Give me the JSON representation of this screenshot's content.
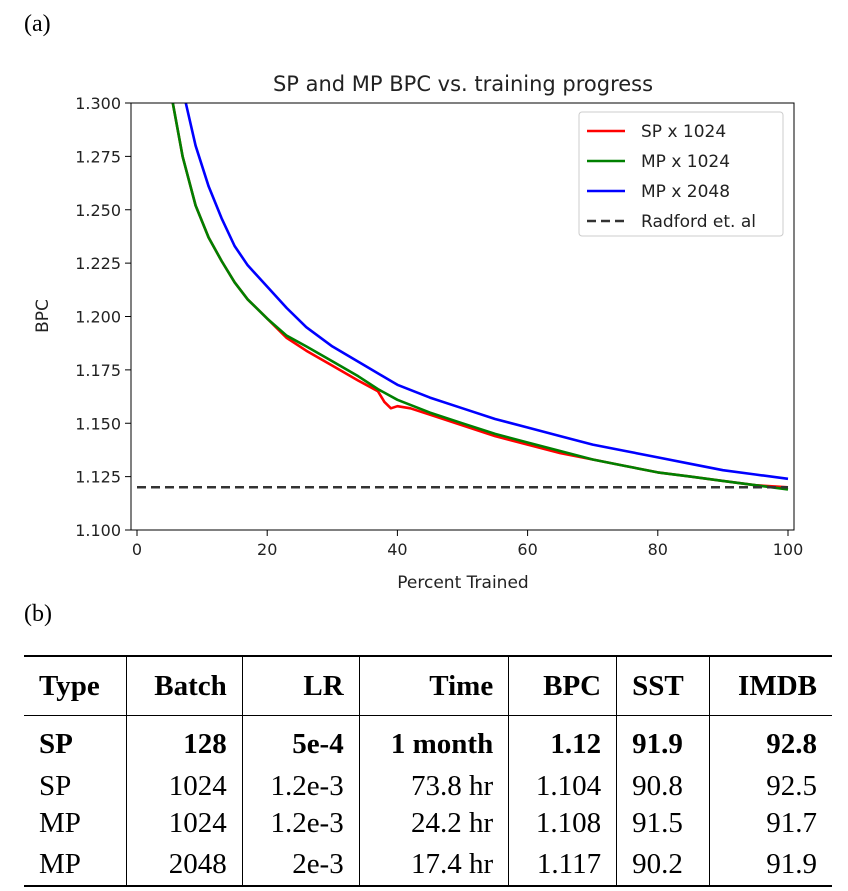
{
  "labels": {
    "panel_a": "(a)",
    "panel_b": "(b)"
  },
  "chart_data": {
    "type": "line",
    "title": "SP and MP BPC vs. training progress",
    "xlabel": "Percent Trained",
    "ylabel": "BPC",
    "xlim": [
      0,
      100
    ],
    "ylim": [
      1.1,
      1.3
    ],
    "xticks": [
      0,
      20,
      40,
      60,
      80,
      100
    ],
    "yticks": [
      1.1,
      1.125,
      1.15,
      1.175,
      1.2,
      1.225,
      1.25,
      1.275,
      1.3
    ],
    "xtick_labels": [
      "0",
      "20",
      "40",
      "60",
      "80",
      "100"
    ],
    "ytick_labels": [
      "1.100",
      "1.125",
      "1.150",
      "1.175",
      "1.200",
      "1.225",
      "1.250",
      "1.275",
      "1.300"
    ],
    "legend_position": "top-right",
    "series": [
      {
        "name": "SP x 1024",
        "color": "#ff0000",
        "x": [
          5.5,
          7,
          9,
          11,
          13,
          15,
          17,
          20,
          23,
          26,
          30,
          34,
          37,
          38,
          39,
          40,
          42,
          45,
          50,
          55,
          60,
          65,
          70,
          75,
          80,
          85,
          90,
          95,
          100
        ],
        "y": [
          1.3,
          1.275,
          1.252,
          1.237,
          1.226,
          1.216,
          1.208,
          1.199,
          1.19,
          1.184,
          1.177,
          1.17,
          1.165,
          1.16,
          1.157,
          1.158,
          1.157,
          1.154,
          1.149,
          1.144,
          1.14,
          1.136,
          1.133,
          1.13,
          1.127,
          1.125,
          1.123,
          1.121,
          1.12
        ]
      },
      {
        "name": "MP x 1024",
        "color": "#008000",
        "x": [
          5.5,
          7,
          9,
          11,
          13,
          15,
          17,
          20,
          23,
          26,
          30,
          34,
          37,
          40,
          45,
          50,
          55,
          60,
          65,
          70,
          75,
          80,
          85,
          90,
          95,
          100
        ],
        "y": [
          1.3,
          1.275,
          1.252,
          1.237,
          1.226,
          1.216,
          1.208,
          1.199,
          1.191,
          1.186,
          1.179,
          1.172,
          1.166,
          1.161,
          1.155,
          1.15,
          1.145,
          1.141,
          1.137,
          1.133,
          1.13,
          1.127,
          1.125,
          1.123,
          1.121,
          1.119
        ]
      },
      {
        "name": "MP x 2048",
        "color": "#0000ff",
        "x": [
          7.5,
          9,
          11,
          13,
          15,
          17,
          20,
          23,
          26,
          30,
          35,
          40,
          45,
          50,
          55,
          60,
          65,
          70,
          75,
          80,
          85,
          90,
          95,
          100
        ],
        "y": [
          1.3,
          1.28,
          1.261,
          1.246,
          1.233,
          1.224,
          1.214,
          1.204,
          1.195,
          1.186,
          1.177,
          1.168,
          1.162,
          1.157,
          1.152,
          1.148,
          1.144,
          1.14,
          1.137,
          1.134,
          1.131,
          1.128,
          1.126,
          1.124
        ]
      },
      {
        "name": "Radford et. al",
        "color": "#333333",
        "dashed": true,
        "x": [
          0,
          100
        ],
        "y": [
          1.12,
          1.12
        ]
      }
    ]
  },
  "table": {
    "headers": [
      "Type",
      "Batch",
      "LR",
      "Time",
      "BPC",
      "SST",
      "IMDB"
    ],
    "rows": [
      [
        "SP",
        "128",
        "5e-4",
        "1 month",
        "1.12",
        "91.9",
        "92.8"
      ],
      [
        "SP",
        "1024",
        "1.2e-3",
        "73.8 hr",
        "1.104",
        "90.8",
        "92.5"
      ],
      [
        "MP",
        "1024",
        "1.2e-3",
        "24.2 hr",
        "1.108",
        "91.5",
        "91.7"
      ],
      [
        "MP",
        "2048",
        "2e-3",
        "17.4 hr",
        "1.117",
        "90.2",
        "91.9"
      ]
    ]
  }
}
